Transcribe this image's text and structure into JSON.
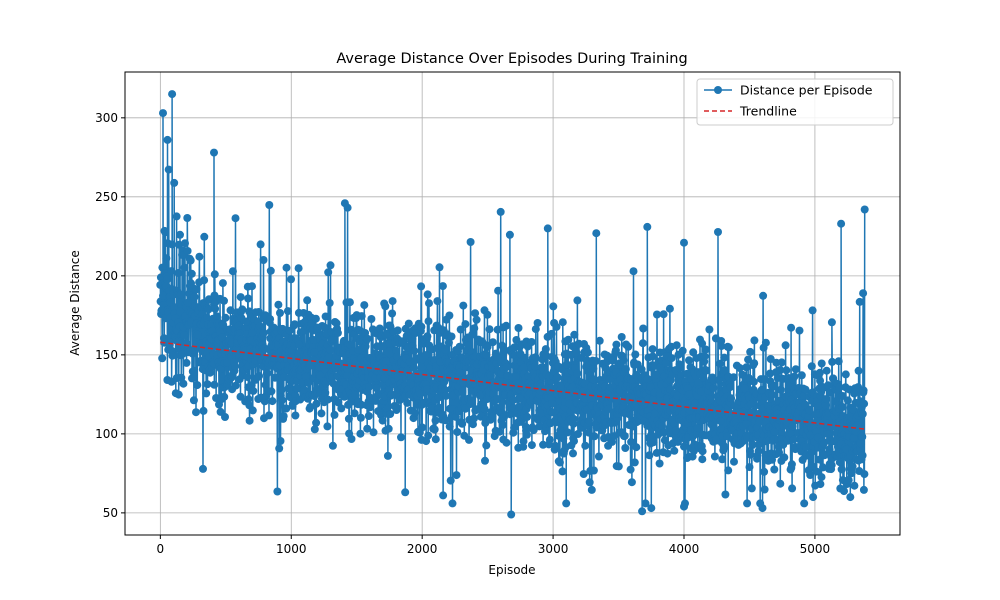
{
  "chart_data": {
    "type": "line",
    "title": "Average Distance Over Episodes During Training",
    "xlabel": "Episode",
    "ylabel": "Average Distance",
    "xlim": [
      -270,
      5650
    ],
    "ylim": [
      36,
      329
    ],
    "xticks": [
      0,
      1000,
      2000,
      3000,
      4000,
      5000
    ],
    "yticks": [
      50,
      100,
      150,
      200,
      250,
      300
    ],
    "grid": true,
    "legend_position": "top-right",
    "episodes": 5380,
    "series": [
      {
        "name": "Distance per Episode",
        "style": "line-with-markers",
        "color": "#1f77b4",
        "mean_start": 158,
        "mean_end": 103,
        "notable_points": [
          {
            "x": 90,
            "y": 315
          },
          {
            "x": 20,
            "y": 303
          },
          {
            "x": 55,
            "y": 286
          },
          {
            "x": 410,
            "y": 278
          },
          {
            "x": 1410,
            "y": 246
          },
          {
            "x": 5380,
            "y": 242
          },
          {
            "x": 5200,
            "y": 233
          },
          {
            "x": 3720,
            "y": 231
          },
          {
            "x": 2960,
            "y": 230
          },
          {
            "x": 3330,
            "y": 227
          },
          {
            "x": 2670,
            "y": 226
          },
          {
            "x": 4000,
            "y": 221
          },
          {
            "x": 2680,
            "y": 49
          },
          {
            "x": 3680,
            "y": 51
          },
          {
            "x": 3750,
            "y": 53
          },
          {
            "x": 4000,
            "y": 54
          },
          {
            "x": 4600,
            "y": 53
          },
          {
            "x": 5270,
            "y": 60
          },
          {
            "x": 3100,
            "y": 56
          },
          {
            "x": 1870,
            "y": 63
          }
        ]
      },
      {
        "name": "Trendline",
        "style": "dashed",
        "color": "#d62728",
        "x": [
          0,
          5380
        ],
        "y": [
          158,
          103
        ]
      }
    ]
  }
}
